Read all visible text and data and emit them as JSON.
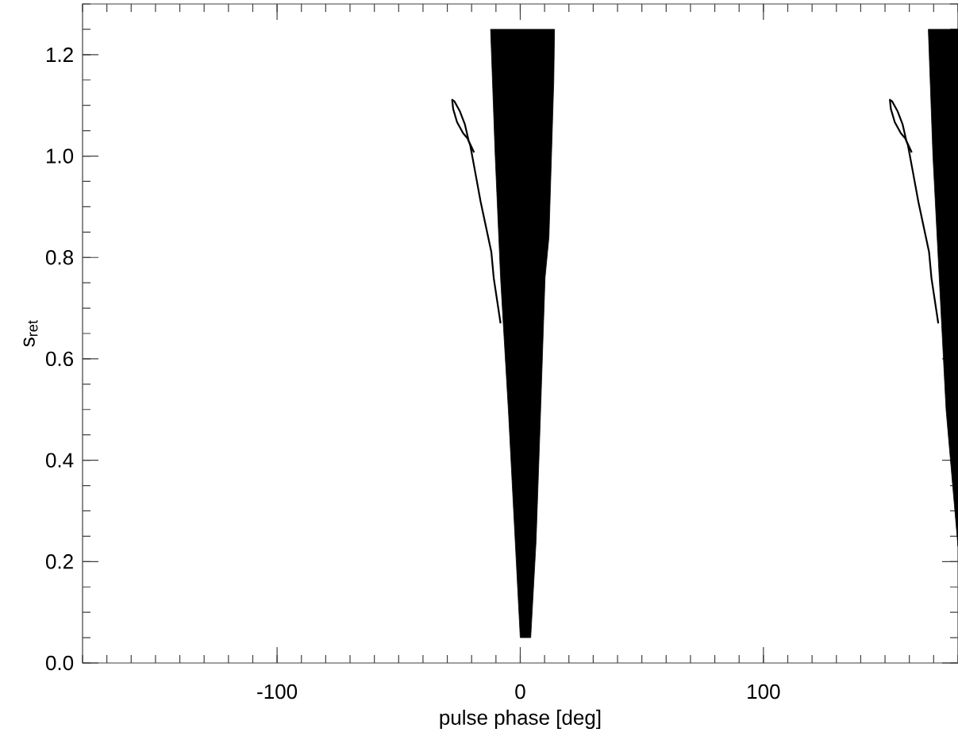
{
  "chart_data": {
    "type": "line",
    "xlabel": "pulse phase [deg]",
    "ylabel": "s$_{ret}$",
    "xlim": [
      -180,
      180
    ],
    "ylim": [
      0,
      1.3
    ],
    "xticks": [
      -100,
      0,
      100
    ],
    "yticks": [
      {
        "value": 0,
        "label": "0.0"
      },
      {
        "value": 0.2,
        "label": "0.2"
      },
      {
        "value": 0.4,
        "label": "0.4"
      },
      {
        "value": 0.6,
        "label": "0.6"
      },
      {
        "value": 0.8,
        "label": "0.8"
      },
      {
        "value": 1.0,
        "label": "1.0"
      },
      {
        "value": 1.2,
        "label": "1.2"
      }
    ],
    "series": [
      {
        "type": "area",
        "color": "#000000",
        "x": [
          -12.2,
          14.1,
          13.8,
          11.8,
          10.2,
          8.1,
          6.5,
          4.3,
          0,
          -4.9,
          -8.1,
          -10.3
        ],
        "values": [
          1.25,
          1.25,
          1.15,
          0.84,
          0.76,
          0.46,
          0.24,
          0.05,
          0.05,
          0.5,
          0.76,
          1.0
        ]
      },
      {
        "type": "area",
        "color": "#000000",
        "x": [
          167.8,
          180,
          180,
          175.1,
          169.7
        ],
        "values": [
          1.25,
          1.25,
          0.23,
          0.5,
          1.0
        ]
      },
      {
        "color": "#000000",
        "x": [
          -19.0,
          -21.2,
          -22.8,
          -24.9,
          -27.1,
          -28.0,
          -27.6,
          -26.0,
          -23.5,
          -21.7,
          -20.6,
          -18.4,
          -16.3,
          -11.9,
          -10.9,
          -8.1
        ],
        "values": [
          1.007,
          1.03,
          1.063,
          1.089,
          1.108,
          1.111,
          1.093,
          1.067,
          1.045,
          1.035,
          1.022,
          0.965,
          0.91,
          0.811,
          0.759,
          0.67
        ]
      },
      {
        "color": "#000000",
        "x": [
          161.0,
          158.8,
          157.2,
          155.1,
          152.9,
          152.0,
          152.4,
          154.0,
          156.5,
          158.3,
          159.4,
          161.6,
          163.7,
          168.1,
          169.1,
          171.9
        ],
        "values": [
          1.007,
          1.03,
          1.063,
          1.089,
          1.108,
          1.111,
          1.093,
          1.067,
          1.045,
          1.035,
          1.022,
          0.965,
          0.91,
          0.811,
          0.759,
          0.67
        ]
      }
    ],
    "grid": false
  }
}
